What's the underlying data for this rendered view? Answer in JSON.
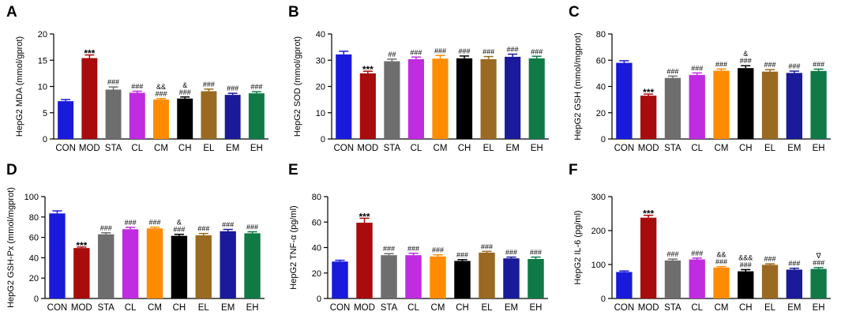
{
  "colors": [
    "#1a1adb",
    "#a80c0c",
    "#6e6e6e",
    "#c02ce0",
    "#ff8c00",
    "#000000",
    "#9a6a22",
    "#1a1a9a",
    "#0f7a46"
  ],
  "chart_data": [
    {
      "panel": "A",
      "type": "bar",
      "title": "",
      "categories": [
        "CON",
        "MOD",
        "STA",
        "CL",
        "CM",
        "CH",
        "EL",
        "EM",
        "EH"
      ],
      "values": [
        7.2,
        15.4,
        9.4,
        8.8,
        7.5,
        7.7,
        9.1,
        8.4,
        8.7
      ],
      "errors": [
        0.3,
        0.6,
        0.5,
        0.3,
        0.2,
        0.3,
        0.4,
        0.3,
        0.3
      ],
      "annotations": [
        [],
        [
          "***"
        ],
        [
          "###"
        ],
        [
          "###"
        ],
        [
          "&&",
          "###"
        ],
        [
          "&",
          "###"
        ],
        [
          "###"
        ],
        [
          "###"
        ],
        [
          "###"
        ]
      ],
      "ylabel": "HepG2 MDA (mmol/gprot)",
      "ylim": [
        0,
        20
      ],
      "yticks": [
        0,
        5,
        10,
        15,
        20
      ]
    },
    {
      "panel": "B",
      "type": "bar",
      "title": "",
      "categories": [
        "CON",
        "MOD",
        "STA",
        "CL",
        "CM",
        "CH",
        "EL",
        "EM",
        "EH"
      ],
      "values": [
        32.2,
        25.0,
        29.6,
        30.4,
        30.6,
        30.7,
        30.4,
        31.3,
        30.7
      ],
      "errors": [
        1.2,
        0.8,
        0.8,
        0.8,
        1.2,
        0.9,
        1.0,
        1.0,
        0.8
      ],
      "annotations": [
        [],
        [
          "***"
        ],
        [
          "##"
        ],
        [
          "###"
        ],
        [
          "###"
        ],
        [
          "###"
        ],
        [
          "###"
        ],
        [
          "###"
        ],
        [
          "###"
        ]
      ],
      "ylabel": "HepG2 SOD (mmol/gprot)",
      "ylim": [
        0,
        40
      ],
      "yticks": [
        0,
        10,
        20,
        30,
        40
      ]
    },
    {
      "panel": "C",
      "type": "bar",
      "title": "",
      "categories": [
        "CON",
        "MOD",
        "STA",
        "CL",
        "CM",
        "CH",
        "EL",
        "EM",
        "EH"
      ],
      "values": [
        58.0,
        33.0,
        46.5,
        48.8,
        52.0,
        54.0,
        51.3,
        50.3,
        51.8
      ],
      "errors": [
        1.6,
        1.2,
        1.4,
        1.5,
        1.3,
        1.8,
        1.5,
        1.4,
        1.4
      ],
      "annotations": [
        [],
        [
          "***"
        ],
        [
          "###"
        ],
        [
          "###"
        ],
        [
          "###"
        ],
        [
          "&",
          "###"
        ],
        [
          "###"
        ],
        [
          "###"
        ],
        [
          "###"
        ]
      ],
      "ylabel": "HepG2 GSH (mmol/mgprot)",
      "ylim": [
        0,
        80
      ],
      "yticks": [
        0,
        20,
        40,
        60,
        80
      ]
    },
    {
      "panel": "D",
      "type": "bar",
      "title": "",
      "categories": [
        "CON",
        "MOD",
        "STA",
        "CL",
        "CM",
        "CH",
        "EL",
        "EM",
        "EH"
      ],
      "values": [
        83.5,
        49.5,
        63.0,
        68.0,
        68.8,
        61.5,
        62.0,
        66.0,
        64.0
      ],
      "errors": [
        2.5,
        1.0,
        1.5,
        1.8,
        1.2,
        1.5,
        1.8,
        1.8,
        1.5
      ],
      "annotations": [
        [],
        [
          "***"
        ],
        [
          "###"
        ],
        [
          "###"
        ],
        [
          "###"
        ],
        [
          "&",
          "###"
        ],
        [
          "###"
        ],
        [
          "###"
        ],
        [
          "###"
        ]
      ],
      "ylabel": "HepG2 GSH-Px (mmol/mgprot)",
      "ylim": [
        0,
        100
      ],
      "yticks": [
        0,
        20,
        40,
        60,
        80,
        100
      ]
    },
    {
      "panel": "E",
      "type": "bar",
      "title": "",
      "categories": [
        "CON",
        "MOD",
        "STA",
        "CL",
        "CM",
        "CH",
        "EL",
        "EM",
        "EH"
      ],
      "values": [
        29.0,
        59.5,
        34.0,
        34.0,
        33.0,
        29.5,
        36.0,
        31.5,
        31.0
      ],
      "errors": [
        1.0,
        3.5,
        1.2,
        1.5,
        1.3,
        1.0,
        1.0,
        1.0,
        1.5
      ],
      "annotations": [
        [],
        [
          "***"
        ],
        [
          "###"
        ],
        [
          "###"
        ],
        [
          "###"
        ],
        [
          "###"
        ],
        [
          "###"
        ],
        [
          "###"
        ],
        [
          "###"
        ]
      ],
      "ylabel": "HepG2 TNF-α (pg/ml)",
      "ylim": [
        0,
        80
      ],
      "yticks": [
        0,
        20,
        40,
        60,
        80
      ]
    },
    {
      "panel": "F",
      "type": "bar",
      "title": "",
      "categories": [
        "CON",
        "MOD",
        "STA",
        "CL",
        "CM",
        "CH",
        "EL",
        "EM",
        "EH"
      ],
      "values": [
        78.0,
        238.0,
        112.0,
        115.0,
        91.0,
        80.0,
        99.0,
        85.0,
        87.0
      ],
      "errors": [
        3.0,
        7.0,
        4.0,
        4.0,
        3.0,
        5.0,
        3.0,
        4.0,
        4.0
      ],
      "annotations": [
        [],
        [
          "***"
        ],
        [
          "###"
        ],
        [
          "###"
        ],
        [
          "&&",
          "###"
        ],
        [
          "&&&",
          "###"
        ],
        [
          "###"
        ],
        [
          "###"
        ],
        [
          "∇",
          "###"
        ]
      ],
      "ylabel": "HepG2 IL-6 (pg/ml)",
      "ylim": [
        0,
        300
      ],
      "yticks": [
        0,
        100,
        200,
        300
      ]
    }
  ]
}
